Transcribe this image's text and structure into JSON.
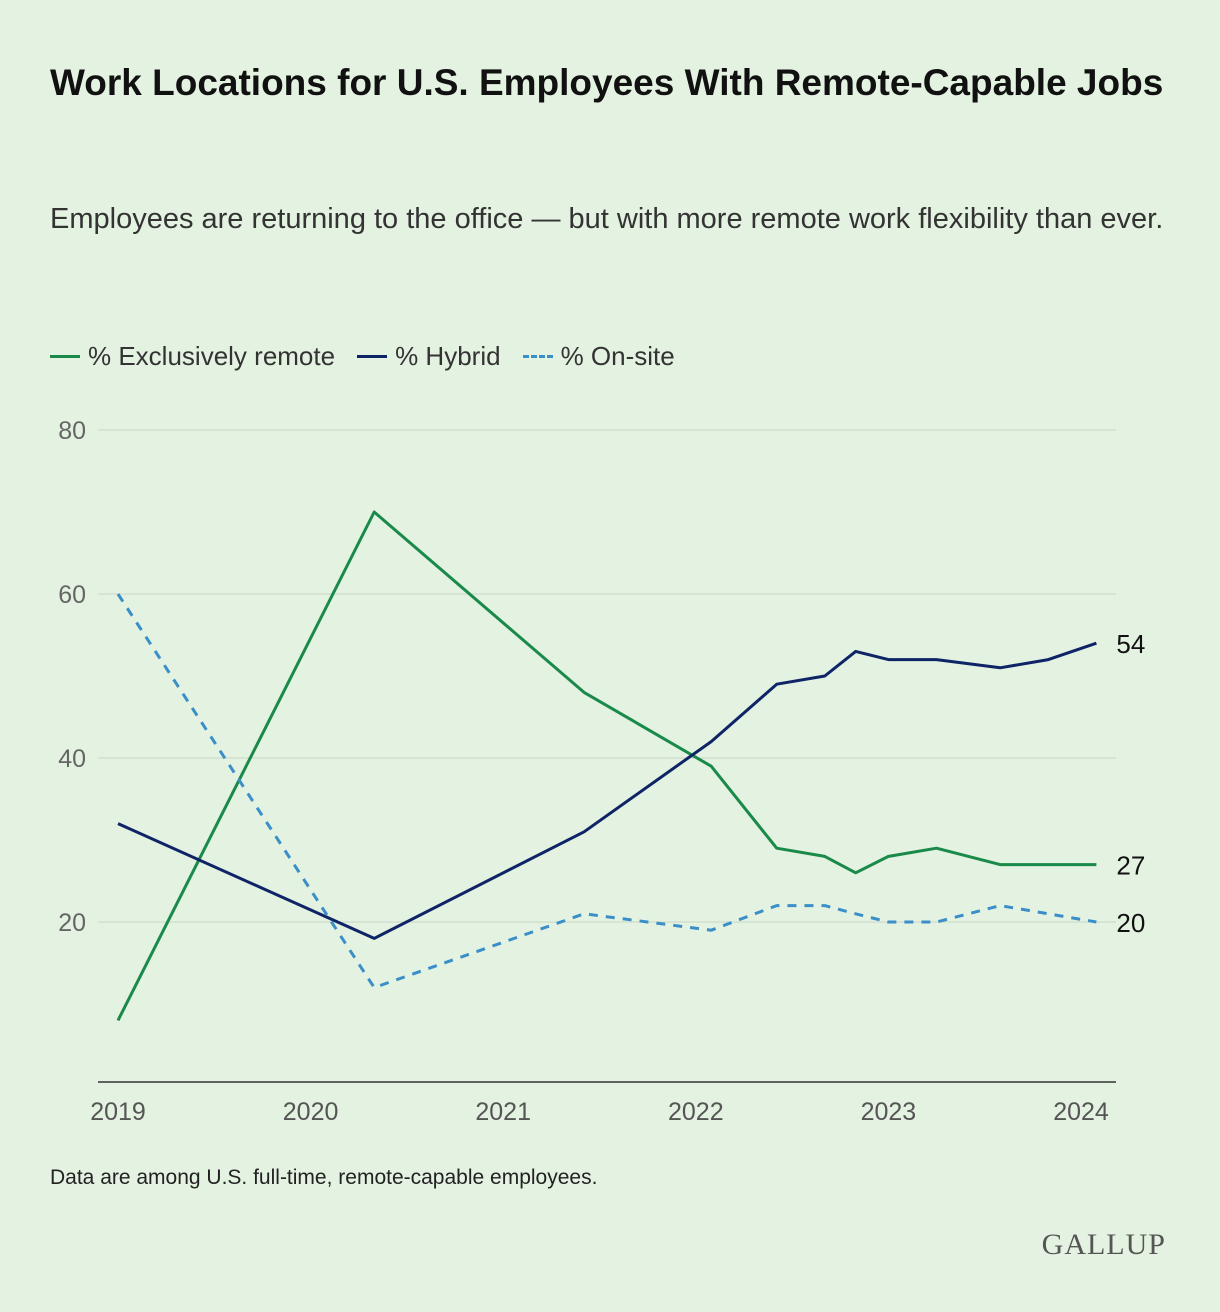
{
  "title": "Work Locations for U.S. Employees With Remote-Capable Jobs",
  "subtitle": "Employees are returning to the office — but with more remote work flexibility than ever.",
  "footnote": "Data are among U.S. full-time, remote-capable employees.",
  "logo": "GALLUP",
  "chart_data": {
    "type": "line",
    "title": "Work Locations for U.S. Employees With Remote-Capable Jobs",
    "subtitle": "Employees are returning to the office — but with more remote work flexibility than ever.",
    "xlabel": "",
    "ylabel": "",
    "xlim": [
      2019,
      2024.1
    ],
    "ylim": [
      0,
      80
    ],
    "yticks": [
      20,
      40,
      60,
      80
    ],
    "xticks": [
      2019,
      2020,
      2021,
      2022,
      2023,
      2024
    ],
    "xtick_labels": [
      "2019",
      "2020",
      "2021",
      "2022",
      "2023",
      "2024"
    ],
    "grid": "horizontal",
    "legend": "top-left",
    "series": [
      {
        "name": "% Exclusively remote",
        "color": "#1a8a4a",
        "dash": "solid",
        "end_label": "27",
        "x": [
          2019.0,
          2020.33,
          2021.42,
          2022.08,
          2022.42,
          2022.67,
          2022.83,
          2023.0,
          2023.25,
          2023.58,
          2023.83,
          2024.08
        ],
        "y": [
          8,
          70,
          48,
          39,
          29,
          28,
          26,
          28,
          29,
          27,
          27,
          27
        ]
      },
      {
        "name": "% Hybrid",
        "color": "#0e2466",
        "dash": "solid",
        "end_label": "54",
        "x": [
          2019.0,
          2020.33,
          2021.42,
          2022.08,
          2022.42,
          2022.67,
          2022.83,
          2023.0,
          2023.25,
          2023.58,
          2023.83,
          2024.08
        ],
        "y": [
          32,
          18,
          31,
          42,
          49,
          50,
          53,
          52,
          52,
          51,
          52,
          54
        ]
      },
      {
        "name": "% On-site",
        "color": "#3a8fc8",
        "dash": "dashed",
        "end_label": "20",
        "x": [
          2019.0,
          2020.33,
          2021.42,
          2022.08,
          2022.42,
          2022.67,
          2022.83,
          2023.0,
          2023.25,
          2023.58,
          2023.83,
          2024.08
        ],
        "y": [
          60,
          12,
          21,
          19,
          22,
          22,
          21,
          20,
          20,
          22,
          21,
          20
        ]
      }
    ]
  }
}
